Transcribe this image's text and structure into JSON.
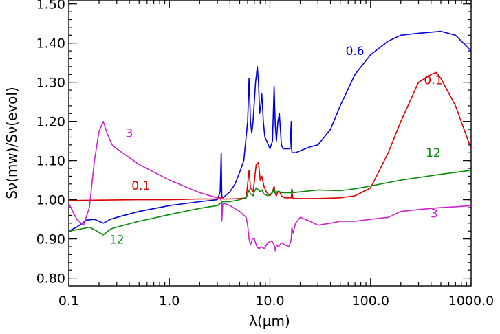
{
  "chart_data": {
    "type": "line",
    "title": "",
    "xlabel": "λ(μm)",
    "ylabel": "Sν(mw)/Sν(evol)",
    "xscale": "log",
    "xlim": [
      0.1,
      1000
    ],
    "ylim": [
      0.78,
      1.51
    ],
    "grid": false,
    "legend": "none",
    "x_ticks": [
      {
        "value": 0.1,
        "label": "0.1"
      },
      {
        "value": 1,
        "label": "1.0"
      },
      {
        "value": 10,
        "label": "10.0"
      },
      {
        "value": 100,
        "label": "100.0"
      },
      {
        "value": 1000,
        "label": "1000.0"
      }
    ],
    "y_ticks": [
      {
        "value": 0.8,
        "label": "0.80"
      },
      {
        "value": 0.9,
        "label": "0.90"
      },
      {
        "value": 1.0,
        "label": "1.00"
      },
      {
        "value": 1.1,
        "label": "1.10"
      },
      {
        "value": 1.2,
        "label": "1.20"
      },
      {
        "value": 1.3,
        "label": "1.30"
      },
      {
        "value": 1.4,
        "label": "1.40"
      },
      {
        "value": 1.5,
        "label": "1.50"
      }
    ],
    "series": [
      {
        "name": "0.6",
        "color": "#0000dd",
        "label_at": [
          70,
          1.37
        ],
        "x": [
          0.1,
          0.12,
          0.15,
          0.18,
          0.2,
          0.22,
          0.26,
          0.3,
          0.5,
          1,
          2,
          3,
          3.2,
          3.28,
          3.3,
          3.32,
          3.4,
          3.6,
          4,
          4.5,
          5,
          5.5,
          6,
          6.2,
          6.4,
          6.6,
          6.8,
          7,
          7.2,
          7.5,
          7.7,
          7.9,
          8.1,
          8.3,
          8.6,
          8.9,
          9.3,
          10,
          10.6,
          11.0,
          11.3,
          11.6,
          12.0,
          12.4,
          12.7,
          13.0,
          13.5,
          14.5,
          15.8,
          16.3,
          16.4,
          16.6,
          17,
          18,
          20,
          25,
          30,
          40,
          50,
          70,
          100,
          150,
          200,
          300,
          500,
          700,
          1000
        ],
        "y": [
          0.92,
          0.93,
          0.948,
          0.95,
          0.945,
          0.94,
          0.95,
          0.955,
          0.97,
          0.985,
          0.995,
          1.0,
          1.02,
          1.12,
          1.06,
          1.01,
          1.005,
          1.01,
          1.02,
          1.04,
          1.07,
          1.1,
          1.2,
          1.31,
          1.2,
          1.17,
          1.2,
          1.25,
          1.3,
          1.34,
          1.3,
          1.22,
          1.24,
          1.27,
          1.2,
          1.16,
          1.15,
          1.13,
          1.15,
          1.29,
          1.19,
          1.15,
          1.2,
          1.22,
          1.18,
          1.14,
          1.13,
          1.13,
          1.13,
          1.2,
          1.13,
          1.12,
          1.12,
          1.12,
          1.125,
          1.135,
          1.14,
          1.18,
          1.24,
          1.32,
          1.37,
          1.405,
          1.42,
          1.425,
          1.43,
          1.42,
          1.38
        ]
      },
      {
        "name": "0.1",
        "color": "#dd0000",
        "label_at": [
          0.52,
          1.026
        ],
        "label2_at": [
          420,
          1.295
        ],
        "x": [
          0.1,
          0.2,
          0.5,
          1,
          2,
          3,
          3.2,
          3.3,
          3.4,
          4,
          5,
          5.8,
          6.0,
          6.2,
          6.4,
          6.8,
          7,
          7.3,
          7.7,
          8.0,
          8.3,
          8.7,
          9.2,
          10,
          10.6,
          11.0,
          11.3,
          11.6,
          12.0,
          12.5,
          13,
          14,
          16.3,
          16.5,
          17,
          20,
          30,
          50,
          70,
          100,
          150,
          200,
          300,
          400,
          450,
          500,
          700,
          1000
        ],
        "y": [
          0.998,
          0.999,
          1.0,
          1.0,
          1.002,
          1.002,
          1.003,
          1.008,
          1.002,
          1.002,
          1.003,
          1.005,
          1.04,
          1.075,
          1.03,
          1.02,
          1.045,
          1.09,
          1.095,
          1.05,
          1.06,
          1.035,
          1.02,
          1.01,
          1.02,
          1.035,
          1.015,
          1.01,
          1.02,
          1.02,
          1.01,
          1.005,
          1.005,
          1.02,
          1.003,
          1.003,
          1.003,
          1.005,
          1.01,
          1.03,
          1.12,
          1.2,
          1.3,
          1.32,
          1.325,
          1.31,
          1.24,
          1.13
        ]
      },
      {
        "name": "12",
        "color": "#0a8a0a",
        "label_at": [
          0.3,
          0.888
        ],
        "label2_at": [
          420,
          1.11
        ],
        "x": [
          0.1,
          0.13,
          0.16,
          0.19,
          0.22,
          0.26,
          0.3,
          0.5,
          1,
          2,
          3,
          3.2,
          3.3,
          3.4,
          4,
          5,
          5.8,
          6.0,
          6.2,
          6.4,
          6.8,
          7.0,
          7.3,
          7.7,
          8.0,
          8.3,
          8.7,
          9.5,
          10.6,
          11.0,
          11.3,
          11.7,
          12.2,
          13,
          16.3,
          16.5,
          17,
          20,
          30,
          50,
          70,
          100,
          200,
          500,
          1000
        ],
        "y": [
          0.92,
          0.925,
          0.93,
          0.92,
          0.91,
          0.925,
          0.93,
          0.945,
          0.962,
          0.978,
          0.985,
          0.99,
          0.993,
          0.995,
          0.995,
          1.0,
          1.005,
          1.015,
          1.025,
          1.015,
          1.01,
          1.02,
          1.03,
          1.025,
          1.02,
          1.025,
          1.015,
          1.01,
          1.018,
          1.028,
          1.015,
          1.02,
          1.022,
          1.018,
          1.018,
          1.028,
          1.018,
          1.02,
          1.025,
          1.023,
          1.028,
          1.035,
          1.05,
          1.065,
          1.075
        ]
      },
      {
        "name": "3",
        "color": "#cc22cc",
        "label_at": [
          0.4,
          1.16
        ],
        "label2_at": [
          430,
          0.955
        ],
        "x": [
          0.1,
          0.12,
          0.14,
          0.16,
          0.18,
          0.2,
          0.22,
          0.24,
          0.27,
          0.3,
          0.5,
          1,
          2,
          3,
          3.2,
          3.3,
          3.32,
          3.4,
          3.6,
          4,
          5,
          5.8,
          6.0,
          6.2,
          6.4,
          6.7,
          7.0,
          7.4,
          7.8,
          8.2,
          8.8,
          9.5,
          10.4,
          11.0,
          11.3,
          11.6,
          12.2,
          13,
          14,
          15.6,
          16.3,
          16.5,
          17,
          18,
          20,
          25,
          30,
          40,
          50,
          70,
          100,
          150,
          200,
          300,
          500,
          700,
          1000
        ],
        "y": [
          0.99,
          0.95,
          0.935,
          0.98,
          1.1,
          1.175,
          1.2,
          1.17,
          1.14,
          1.13,
          1.09,
          1.05,
          1.018,
          1.005,
          1.005,
          0.995,
          0.945,
          0.99,
          0.99,
          0.985,
          0.97,
          0.955,
          0.935,
          0.9,
          0.885,
          0.9,
          0.9,
          0.88,
          0.875,
          0.88,
          0.875,
          0.89,
          0.895,
          0.885,
          0.87,
          0.885,
          0.88,
          0.89,
          0.885,
          0.88,
          0.9,
          0.93,
          0.915,
          0.94,
          0.955,
          0.945,
          0.935,
          0.94,
          0.945,
          0.945,
          0.95,
          0.955,
          0.97,
          0.975,
          0.98,
          0.982,
          0.985
        ]
      }
    ]
  }
}
